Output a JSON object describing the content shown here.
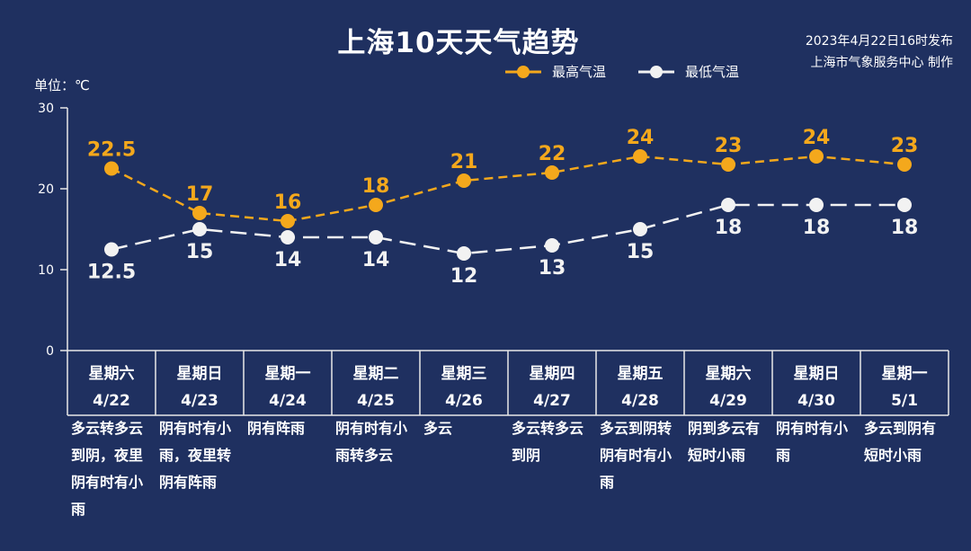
{
  "title": "上海10天天气趋势",
  "issued": {
    "line1": "2023年4月22日16时发布",
    "line2": "上海市气象服务中心 制作"
  },
  "unit_label": "单位：℃",
  "legend": {
    "max": "最高气温",
    "min": "最低气温"
  },
  "colors": {
    "background": "#1f3060",
    "max": "#f4a81c",
    "min": "#f2f2f2",
    "grid": "#e8e8e8"
  },
  "chart_data": {
    "type": "line",
    "title": "上海10天天气趋势",
    "ylabel": "单位：℃",
    "ylim": [
      0,
      30
    ],
    "yticks": [
      0,
      10,
      20,
      30
    ],
    "grid": false,
    "legend_position": "top-right",
    "categories": [
      "4/22",
      "4/23",
      "4/24",
      "4/25",
      "4/26",
      "4/27",
      "4/28",
      "4/29",
      "4/30",
      "5/1"
    ],
    "weekdays": [
      "星期六",
      "星期日",
      "星期一",
      "星期二",
      "星期三",
      "星期四",
      "星期五",
      "星期六",
      "星期日",
      "星期一"
    ],
    "descriptions": [
      "多云转多云到阴，夜里阴有时有小雨",
      "阴有时有小雨，夜里转阴有阵雨",
      "阴有阵雨",
      "阴有时有小雨转多云",
      "多云",
      "多云转多云到阴",
      "多云到阴转阴有时有小雨",
      "阴到多云有短时小雨",
      "阴有时有小雨",
      "多云到阴有短时小雨"
    ],
    "series": [
      {
        "name": "最高气温",
        "values": [
          22.5,
          17,
          16,
          18,
          21,
          22,
          24,
          23,
          24,
          23
        ],
        "labels": [
          "22.5",
          "17",
          "16",
          "18",
          "21",
          "22",
          "24",
          "23",
          "24",
          "23"
        ],
        "color": "#f4a81c"
      },
      {
        "name": "最低气温",
        "values": [
          12.5,
          15,
          14,
          14,
          12,
          13,
          15,
          18,
          18,
          18
        ],
        "labels": [
          "12.5",
          "15",
          "14",
          "14",
          "12",
          "13",
          "15",
          "18",
          "18",
          "18"
        ],
        "color": "#f2f2f2"
      }
    ]
  }
}
